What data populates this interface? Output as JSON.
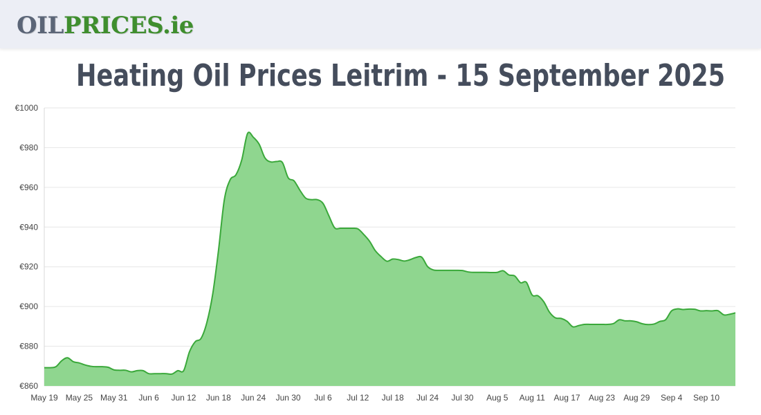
{
  "header": {
    "logo_part1": "OIL",
    "logo_part2": "PRICES",
    "logo_part3": ".ie"
  },
  "page": {
    "title": "Heating Oil Prices Leitrim - 15 September 2025"
  },
  "colors": {
    "line": "#3aa83a",
    "fill": "#8fd68f",
    "grid": "#e6e6e6",
    "header_bg": "#eceef5",
    "title": "#454d5c"
  },
  "chart_data": {
    "type": "area",
    "title": "",
    "xlabel": "",
    "ylabel": "",
    "ylim": [
      860,
      1000
    ],
    "xlim": [
      "2025-05-19",
      "2025-09-15"
    ],
    "y_ticks": [
      "€860",
      "€880",
      "€900",
      "€920",
      "€940",
      "€960",
      "€980",
      "€1000"
    ],
    "x_ticks": [
      "May 19",
      "May 25",
      "May 31",
      "Jun 6",
      "Jun 12",
      "Jun 18",
      "Jun 24",
      "Jun 30",
      "Jul 6",
      "Jul 12",
      "Jul 18",
      "Jul 24",
      "Jul 30",
      "Aug 5",
      "Aug 11",
      "Aug 17",
      "Aug 23",
      "Aug 29",
      "Sep 4",
      "Sep 10"
    ],
    "grid": true,
    "legend": "none",
    "series": [
      {
        "x": [
          "2025-05-19",
          "2025-05-20",
          "2025-05-21",
          "2025-05-22",
          "2025-05-23",
          "2025-05-24",
          "2025-05-25",
          "2025-05-26",
          "2025-05-27",
          "2025-05-28",
          "2025-05-29",
          "2025-05-30",
          "2025-05-31",
          "2025-06-01",
          "2025-06-02",
          "2025-06-03",
          "2025-06-04",
          "2025-06-05",
          "2025-06-06",
          "2025-06-07",
          "2025-06-08",
          "2025-06-09",
          "2025-06-10",
          "2025-06-11",
          "2025-06-12",
          "2025-06-13",
          "2025-06-14",
          "2025-06-15",
          "2025-06-16",
          "2025-06-17",
          "2025-06-18",
          "2025-06-19",
          "2025-06-20",
          "2025-06-21",
          "2025-06-22",
          "2025-06-23",
          "2025-06-24",
          "2025-06-25",
          "2025-06-26",
          "2025-06-27",
          "2025-06-28",
          "2025-06-29",
          "2025-06-30",
          "2025-07-01",
          "2025-07-02",
          "2025-07-03",
          "2025-07-04",
          "2025-07-05",
          "2025-07-06",
          "2025-07-07",
          "2025-07-08",
          "2025-07-09",
          "2025-07-10",
          "2025-07-11",
          "2025-07-12",
          "2025-07-13",
          "2025-07-14",
          "2025-07-15",
          "2025-07-16",
          "2025-07-17",
          "2025-07-18",
          "2025-07-19",
          "2025-07-20",
          "2025-07-21",
          "2025-07-22",
          "2025-07-23",
          "2025-07-24",
          "2025-07-25",
          "2025-07-26",
          "2025-07-27",
          "2025-07-28",
          "2025-07-29",
          "2025-07-30",
          "2025-07-31",
          "2025-08-01",
          "2025-08-02",
          "2025-08-03",
          "2025-08-04",
          "2025-08-05",
          "2025-08-06",
          "2025-08-07",
          "2025-08-08",
          "2025-08-09",
          "2025-08-10",
          "2025-08-11",
          "2025-08-12",
          "2025-08-13",
          "2025-08-14",
          "2025-08-15",
          "2025-08-16",
          "2025-08-17",
          "2025-08-18",
          "2025-08-19",
          "2025-08-20",
          "2025-08-21",
          "2025-08-22",
          "2025-08-23",
          "2025-08-24",
          "2025-08-25",
          "2025-08-26",
          "2025-08-27",
          "2025-08-28",
          "2025-08-29",
          "2025-08-30",
          "2025-08-31",
          "2025-09-01",
          "2025-09-02",
          "2025-09-03",
          "2025-09-04",
          "2025-09-05",
          "2025-09-06",
          "2025-09-07",
          "2025-09-08",
          "2025-09-09",
          "2025-09-10",
          "2025-09-11",
          "2025-09-12",
          "2025-09-13",
          "2025-09-14",
          "2025-09-15"
        ],
        "y": [
          869.2,
          869.2,
          869.7,
          872.7,
          874.2,
          872.2,
          871.6,
          870.6,
          869.9,
          869.7,
          869.7,
          869.4,
          868.1,
          867.9,
          867.9,
          867.1,
          867.7,
          867.7,
          866.2,
          866.2,
          866.2,
          866.2,
          866.0,
          867.7,
          867.7,
          877.2,
          882.3,
          884.0,
          892.0,
          906.2,
          928.3,
          953.7,
          963.8,
          966.3,
          973.8,
          987.1,
          985.2,
          981.7,
          974.8,
          972.8,
          973.0,
          972.5,
          964.8,
          963.3,
          958.6,
          954.6,
          953.8,
          953.8,
          951.9,
          945.7,
          939.6,
          939.4,
          939.4,
          939.4,
          939.1,
          936.3,
          932.9,
          928.1,
          925.1,
          922.8,
          923.9,
          923.6,
          922.9,
          923.6,
          924.7,
          924.8,
          920.1,
          918.4,
          918.2,
          918.2,
          918.2,
          918.2,
          918.1,
          917.4,
          917.2,
          917.2,
          917.2,
          917.1,
          917.2,
          918.0,
          915.9,
          915.4,
          912.0,
          912.2,
          905.8,
          905.4,
          902.4,
          897.1,
          894.3,
          894.0,
          892.6,
          889.8,
          890.4,
          891.0,
          891.0,
          891.0,
          891.0,
          891.0,
          891.4,
          893.3,
          892.8,
          892.8,
          892.3,
          891.3,
          890.9,
          891.2,
          892.5,
          893.4,
          897.8,
          898.8,
          898.5,
          898.7,
          898.6,
          897.8,
          897.9,
          897.8,
          897.9,
          895.8,
          896.1,
          896.8
        ]
      }
    ]
  }
}
